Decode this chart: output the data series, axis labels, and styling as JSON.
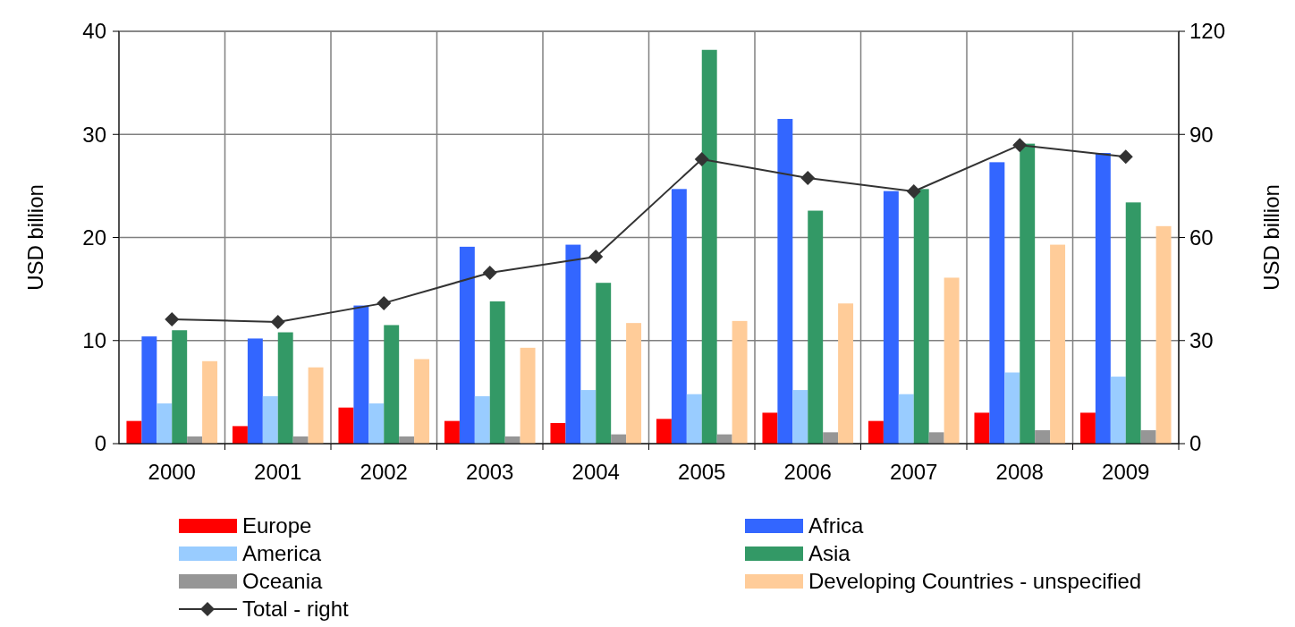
{
  "chart_data": {
    "type": "bar",
    "ylabel": "USD billion",
    "y2label": "USD billion",
    "categories": [
      "2000",
      "2001",
      "2002",
      "2003",
      "2004",
      "2005",
      "2006",
      "2007",
      "2008",
      "2009"
    ],
    "series": [
      {
        "name": "Europe",
        "color": "#ff0000",
        "values": [
          2.2,
          1.7,
          3.5,
          2.2,
          2.0,
          2.4,
          3.0,
          2.2,
          3.0,
          3.0
        ]
      },
      {
        "name": "Africa",
        "color": "#3366ff",
        "values": [
          10.4,
          10.2,
          13.4,
          19.1,
          19.3,
          24.7,
          31.5,
          24.5,
          27.3,
          28.2
        ]
      },
      {
        "name": "America",
        "color": "#99ccff",
        "values": [
          3.9,
          4.6,
          3.9,
          4.6,
          5.2,
          4.8,
          5.2,
          4.8,
          6.9,
          6.5
        ]
      },
      {
        "name": "Asia",
        "color": "#339966",
        "values": [
          11.0,
          10.8,
          11.5,
          13.8,
          15.6,
          38.2,
          22.6,
          24.7,
          29.1,
          23.4
        ]
      },
      {
        "name": "Oceania",
        "color": "#969696",
        "values": [
          0.7,
          0.7,
          0.7,
          0.7,
          0.9,
          0.9,
          1.1,
          1.1,
          1.3,
          1.3
        ]
      },
      {
        "name": "Developing Countries - unspecified",
        "color": "#ffcc99",
        "values": [
          8.0,
          7.4,
          8.2,
          9.3,
          11.7,
          11.9,
          13.6,
          16.1,
          19.3,
          21.1
        ]
      },
      {
        "name": "Total - right",
        "type": "line",
        "axis": "y2",
        "color": "#333333",
        "marker": "diamond",
        "values": [
          36.2,
          35.4,
          40.9,
          49.7,
          54.4,
          82.8,
          77.3,
          73.4,
          86.9,
          83.5
        ]
      }
    ],
    "ylim": [
      0,
      40
    ],
    "yticks": [
      0,
      10,
      20,
      30,
      40
    ],
    "y2lim": [
      0,
      120
    ],
    "y2ticks": [
      0,
      30,
      60,
      90,
      120
    ],
    "grid": true,
    "legend": "bottom"
  }
}
